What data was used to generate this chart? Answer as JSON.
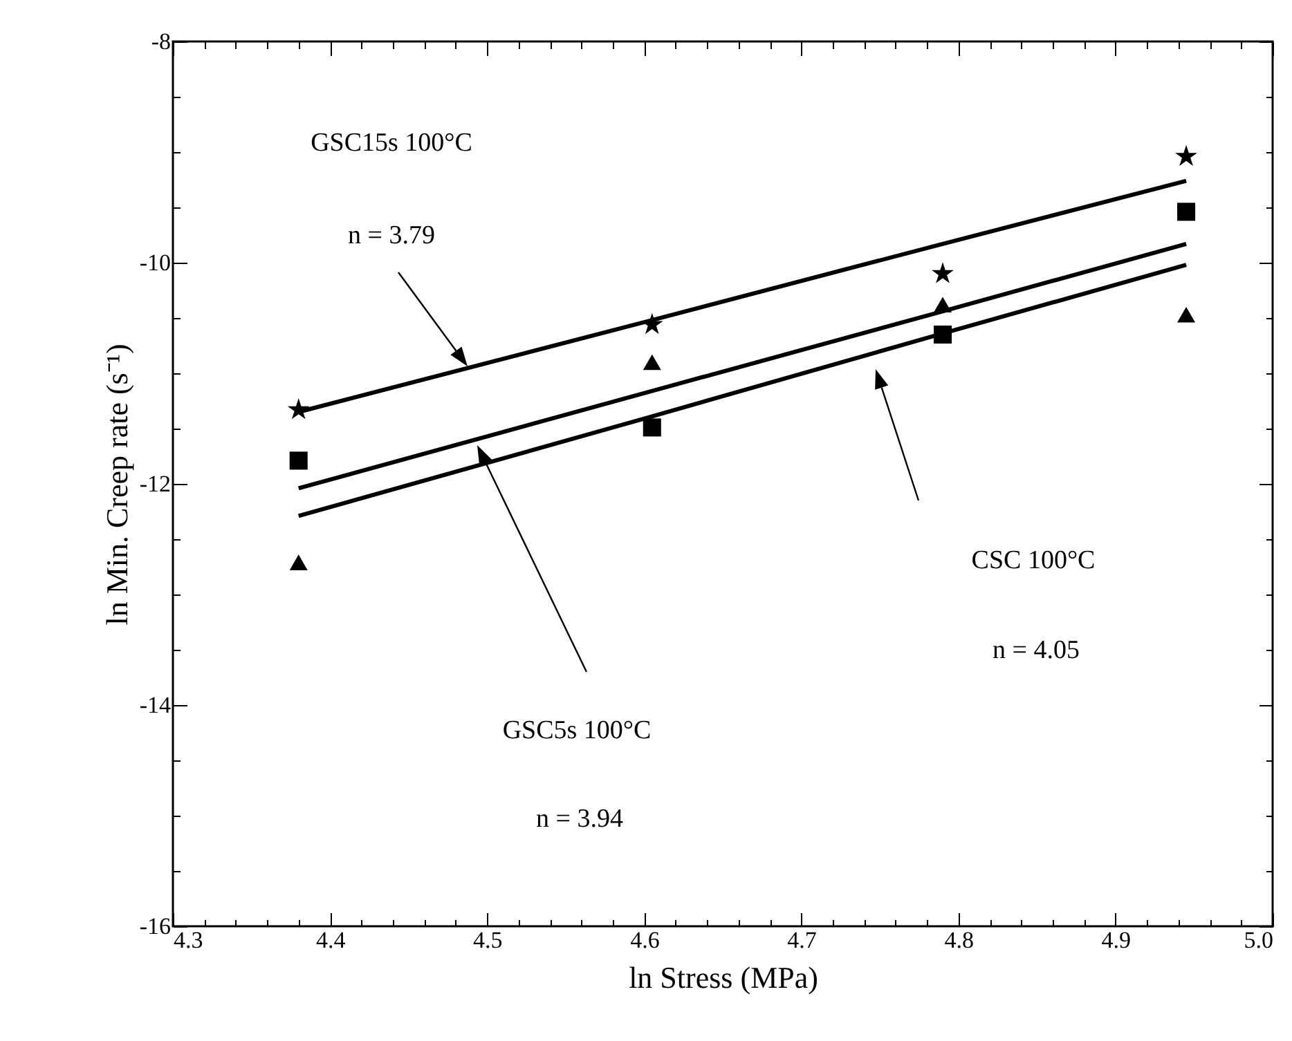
{
  "chart_data": {
    "type": "scatter",
    "xlabel": "ln Stress (MPa)",
    "ylabel": "ln Min. Creep rate (s⁻¹)",
    "x": [
      4.38,
      4.605,
      4.79,
      4.945
    ],
    "series": [
      {
        "marker": "star",
        "color": "#000000",
        "values": [
          -11.33,
          -10.56,
          -10.1,
          -9.04
        ]
      },
      {
        "marker": "square",
        "color": "#000000",
        "values": [
          -11.79,
          -11.49,
          -10.65,
          -9.54
        ]
      },
      {
        "marker": "triangle",
        "color": "#000000",
        "values": [
          -12.71,
          -10.9,
          -10.38,
          -10.47
        ]
      },
      {
        "type": "line",
        "marker": "none",
        "line_style": "solid",
        "color": "#000000",
        "values": [
          -11.35,
          -10.52,
          -9.83,
          -9.26
        ]
      },
      {
        "type": "line",
        "marker": "none",
        "line_style": "solid",
        "color": "#000000",
        "values": [
          -12.04,
          -11.16,
          -10.44,
          -9.83
        ]
      },
      {
        "type": "line",
        "marker": "none",
        "line_style": "solid",
        "color": "#000000",
        "values": [
          -12.29,
          -11.39,
          -10.64,
          -10.02
        ]
      }
    ],
    "xlim": [
      4.3,
      5.0
    ],
    "ylim": [
      -16,
      -8
    ],
    "xticks": [
      4.3,
      {
        "value": 4.32,
        "label": null
      },
      {
        "value": 4.34,
        "label": null
      },
      {
        "value": 4.36,
        "label": null
      },
      {
        "value": 4.38,
        "label": null
      },
      4.4,
      {
        "value": 4.42,
        "label": null
      },
      {
        "value": 4.44,
        "label": null
      },
      {
        "value": 4.46,
        "label": null
      },
      {
        "value": 4.48,
        "label": null
      },
      4.5,
      {
        "value": 4.52,
        "label": null
      },
      {
        "value": 4.54,
        "label": null
      },
      {
        "value": 4.56,
        "label": null
      },
      {
        "value": 4.58,
        "label": null
      },
      4.6,
      {
        "value": 4.62,
        "label": null
      },
      {
        "value": 4.64,
        "label": null
      },
      {
        "value": 4.66,
        "label": null
      },
      {
        "value": 4.68,
        "label": null
      },
      4.7,
      {
        "value": 4.72,
        "label": null
      },
      {
        "value": 4.74,
        "label": null
      },
      {
        "value": 4.76,
        "label": null
      },
      {
        "value": 4.78,
        "label": null
      },
      4.8,
      {
        "value": 4.82,
        "label": null
      },
      {
        "value": 4.84,
        "label": null
      },
      {
        "value": 4.86,
        "label": null
      },
      {
        "value": 4.88,
        "label": null
      },
      4.9,
      {
        "value": 4.92,
        "label": null
      },
      {
        "value": 4.94,
        "label": null
      },
      {
        "value": 4.96,
        "label": null
      },
      {
        "value": 4.98,
        "label": null
      },
      {
        "value": 5.0,
        "label": "5.0"
      }
    ],
    "yticks": [
      -16,
      {
        "value": -15.5,
        "label": null
      },
      {
        "value": -15,
        "label": null
      },
      {
        "value": -14.5,
        "label": null
      },
      -14,
      {
        "value": -13.5,
        "label": null
      },
      {
        "value": -13,
        "label": null
      },
      {
        "value": -12.5,
        "label": null
      },
      -12,
      {
        "value": -11.5,
        "label": null
      },
      {
        "value": -11,
        "label": null
      },
      {
        "value": -10.5,
        "label": null
      },
      -10,
      {
        "value": -9.5,
        "label": null
      },
      {
        "value": -9,
        "label": null
      },
      {
        "value": -8.5,
        "label": null
      },
      -8
    ],
    "grid": false,
    "annotations": [
      "GSC15s 100°C",
      "n = 3.79",
      "GSC5s 100°C",
      "n = 3.94",
      "CSC 100°C",
      "n = 4.05"
    ]
  }
}
